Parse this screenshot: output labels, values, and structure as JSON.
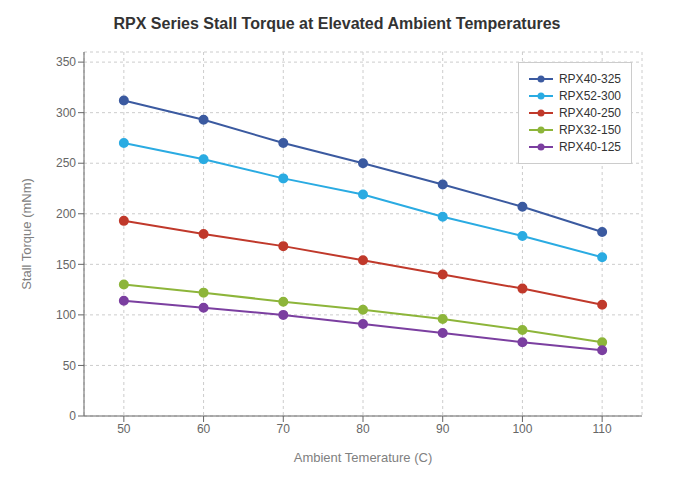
{
  "chart_data": {
    "type": "line",
    "title": "RPX Series Stall Torque at Elevated Ambient Temperatures",
    "xlabel": "Ambient Temerature (C)",
    "ylabel": "Stall Torque (mNm)",
    "x": [
      50,
      60,
      70,
      80,
      90,
      100,
      110
    ],
    "series": [
      {
        "name": "RPX40-325",
        "color": "#3B5AA0",
        "values": [
          312,
          293,
          270,
          250,
          229,
          207,
          182
        ]
      },
      {
        "name": "RPX52-300",
        "color": "#2AABE2",
        "values": [
          270,
          254,
          235,
          219,
          197,
          178,
          157
        ]
      },
      {
        "name": "RPX40-250",
        "color": "#C0392B",
        "values": [
          193,
          180,
          168,
          154,
          140,
          126,
          110
        ]
      },
      {
        "name": "RPX32-150",
        "color": "#8DB53A",
        "values": [
          130,
          122,
          113,
          105,
          96,
          85,
          73
        ]
      },
      {
        "name": "RPX40-125",
        "color": "#7B3FA0",
        "values": [
          114,
          107,
          100,
          91,
          82,
          73,
          65
        ]
      }
    ],
    "xlim": [
      45,
      115
    ],
    "xticks": [
      50,
      60,
      70,
      80,
      90,
      100,
      110
    ],
    "ylim": [
      0,
      360
    ],
    "yticks": [
      0,
      50,
      100,
      150,
      200,
      250,
      300,
      350
    ],
    "grid": true,
    "legend": "upper right",
    "marker": "o"
  }
}
